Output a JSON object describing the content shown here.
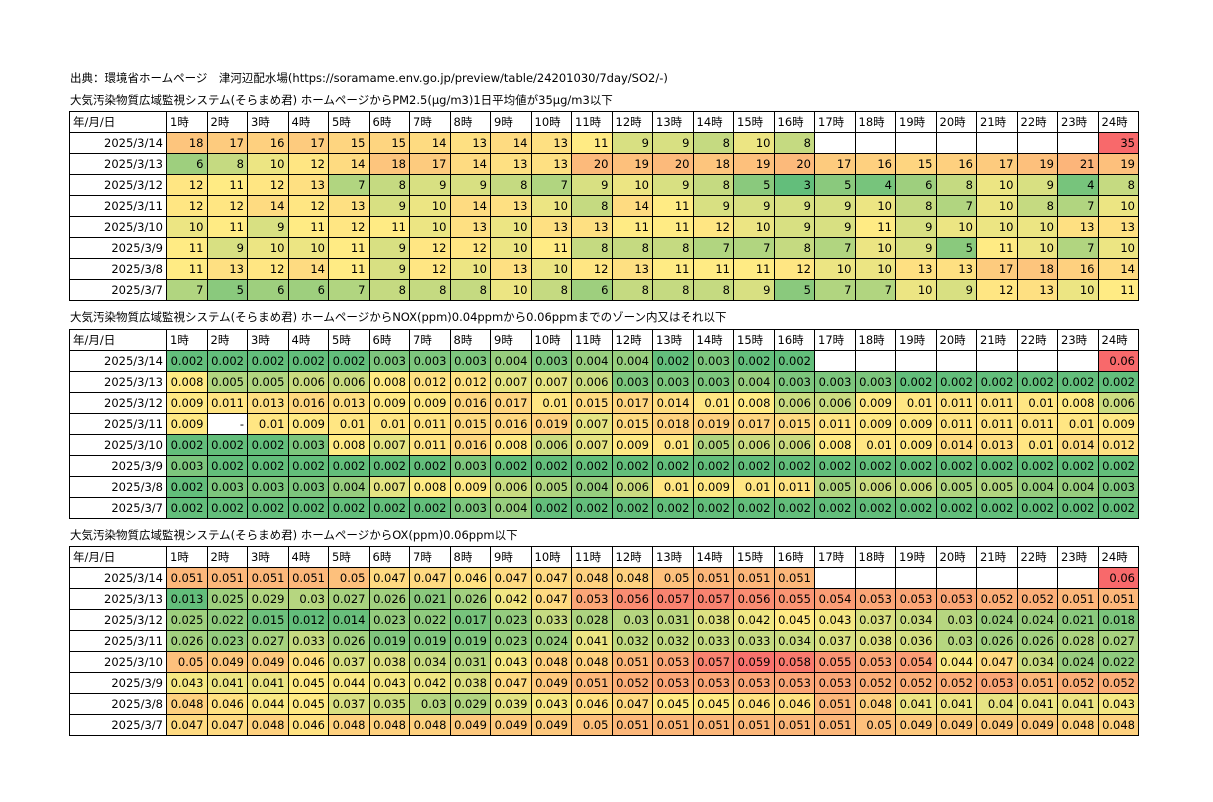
{
  "source_line": "出典：環境省ホームページ　津河辺配水場(https://soramame.env.go.jp/preview/table/24201030/7day/SO2/-)",
  "hours": [
    "1時",
    "2時",
    "3時",
    "4時",
    "5時",
    "6時",
    "7時",
    "8時",
    "9時",
    "10時",
    "11時",
    "12時",
    "13時",
    "14時",
    "15時",
    "16時",
    "17時",
    "18時",
    "19時",
    "20時",
    "21時",
    "22時",
    "23時",
    "24時"
  ],
  "colors": {
    "green": "#63be7b",
    "yellow": "#ffeb84",
    "red": "#f8696b",
    "blank": "#ffffff"
  },
  "tables": [
    {
      "title": "大気汚染物質広域監視システム(そらまめ君) ホームページからPM2.5(μg/m3)1日平均値が35μg/m3以下",
      "corner": "年/月/日",
      "scale": {
        "min": 3,
        "mid": 11,
        "max": 35
      },
      "rows": [
        {
          "date": "2025/3/14",
          "values": [
            "18",
            "17",
            "16",
            "17",
            "15",
            "15",
            "14",
            "13",
            "14",
            "13",
            "11",
            "9",
            "9",
            "8",
            "10",
            "8",
            "",
            "",
            "",
            "",
            "",
            "",
            "",
            "35"
          ]
        },
        {
          "date": "2025/3/13",
          "values": [
            "6",
            "8",
            "10",
            "12",
            "14",
            "18",
            "17",
            "14",
            "13",
            "13",
            "20",
            "19",
            "20",
            "18",
            "19",
            "20",
            "17",
            "16",
            "15",
            "16",
            "17",
            "19",
            "21",
            "19"
          ]
        },
        {
          "date": "2025/3/12",
          "values": [
            "12",
            "11",
            "12",
            "13",
            "7",
            "8",
            "9",
            "9",
            "8",
            "7",
            "9",
            "10",
            "9",
            "8",
            "5",
            "3",
            "5",
            "4",
            "6",
            "8",
            "10",
            "9",
            "4",
            "8"
          ]
        },
        {
          "date": "2025/3/11",
          "values": [
            "12",
            "12",
            "14",
            "12",
            "13",
            "9",
            "10",
            "14",
            "13",
            "10",
            "8",
            "14",
            "11",
            "9",
            "9",
            "9",
            "9",
            "10",
            "8",
            "7",
            "10",
            "8",
            "7",
            "10"
          ]
        },
        {
          "date": "2025/3/10",
          "values": [
            "10",
            "11",
            "9",
            "11",
            "12",
            "11",
            "10",
            "13",
            "10",
            "13",
            "13",
            "11",
            "11",
            "12",
            "10",
            "9",
            "9",
            "11",
            "9",
            "10",
            "10",
            "10",
            "13",
            "13"
          ]
        },
        {
          "date": "2025/3/9",
          "values": [
            "11",
            "9",
            "10",
            "10",
            "11",
            "9",
            "12",
            "12",
            "10",
            "11",
            "8",
            "8",
            "8",
            "7",
            "7",
            "8",
            "7",
            "10",
            "9",
            "5",
            "11",
            "10",
            "7",
            "10"
          ]
        },
        {
          "date": "2025/3/8",
          "values": [
            "11",
            "13",
            "12",
            "14",
            "11",
            "9",
            "12",
            "10",
            "13",
            "10",
            "12",
            "13",
            "11",
            "11",
            "11",
            "12",
            "10",
            "10",
            "13",
            "13",
            "17",
            "18",
            "16",
            "14"
          ]
        },
        {
          "date": "2025/3/7",
          "values": [
            "7",
            "5",
            "6",
            "6",
            "7",
            "8",
            "8",
            "8",
            "10",
            "8",
            "6",
            "8",
            "8",
            "8",
            "9",
            "5",
            "7",
            "7",
            "10",
            "9",
            "12",
            "13",
            "10",
            "11"
          ]
        }
      ]
    },
    {
      "title": "大気汚染物質広域監視システム(そらまめ君) ホームページからNOX(ppm)0.04ppmから0.06ppmまでのゾーン内又はそれ以下",
      "corner": "年/月/日",
      "scale": {
        "min": 0.002,
        "mid": 0.008,
        "max": 0.06
      },
      "rows": [
        {
          "date": "2025/3/14",
          "values": [
            "0.002",
            "0.002",
            "0.002",
            "0.002",
            "0.002",
            "0.003",
            "0.003",
            "0.003",
            "0.004",
            "0.003",
            "0.004",
            "0.004",
            "0.002",
            "0.003",
            "0.002",
            "0.002",
            "",
            "",
            "",
            "",
            "",
            "",
            "",
            "0.06"
          ]
        },
        {
          "date": "2025/3/13",
          "values": [
            "0.008",
            "0.005",
            "0.005",
            "0.006",
            "0.006",
            "0.008",
            "0.012",
            "0.012",
            "0.007",
            "0.007",
            "0.006",
            "0.003",
            "0.003",
            "0.003",
            "0.004",
            "0.003",
            "0.003",
            "0.003",
            "0.002",
            "0.002",
            "0.002",
            "0.002",
            "0.002",
            "0.002"
          ]
        },
        {
          "date": "2025/3/12",
          "values": [
            "0.009",
            "0.011",
            "0.013",
            "0.016",
            "0.013",
            "0.009",
            "0.009",
            "0.016",
            "0.017",
            "0.01",
            "0.015",
            "0.017",
            "0.014",
            "0.01",
            "0.008",
            "0.006",
            "0.006",
            "0.009",
            "0.01",
            "0.011",
            "0.011",
            "0.01",
            "0.008",
            "0.006"
          ]
        },
        {
          "date": "2025/3/11",
          "values": [
            "0.009",
            "-",
            "0.01",
            "0.009",
            "0.01",
            "0.01",
            "0.011",
            "0.015",
            "0.016",
            "0.019",
            "0.007",
            "0.015",
            "0.018",
            "0.019",
            "0.017",
            "0.015",
            "0.011",
            "0.009",
            "0.009",
            "0.011",
            "0.011",
            "0.011",
            "0.01",
            "0.009"
          ]
        },
        {
          "date": "2025/3/10",
          "values": [
            "0.002",
            "0.002",
            "0.002",
            "0.003",
            "0.008",
            "0.007",
            "0.011",
            "0.016",
            "0.008",
            "0.006",
            "0.007",
            "0.009",
            "0.01",
            "0.005",
            "0.006",
            "0.006",
            "0.008",
            "0.01",
            "0.009",
            "0.014",
            "0.013",
            "0.01",
            "0.014",
            "0.012"
          ]
        },
        {
          "date": "2025/3/9",
          "values": [
            "0.003",
            "0.002",
            "0.002",
            "0.002",
            "0.002",
            "0.002",
            "0.002",
            "0.003",
            "0.002",
            "0.002",
            "0.002",
            "0.002",
            "0.002",
            "0.002",
            "0.002",
            "0.002",
            "0.002",
            "0.002",
            "0.002",
            "0.002",
            "0.002",
            "0.002",
            "0.002",
            "0.002"
          ]
        },
        {
          "date": "2025/3/8",
          "values": [
            "0.002",
            "0.003",
            "0.003",
            "0.003",
            "0.004",
            "0.007",
            "0.008",
            "0.009",
            "0.006",
            "0.005",
            "0.004",
            "0.006",
            "0.01",
            "0.009",
            "0.01",
            "0.011",
            "0.005",
            "0.006",
            "0.006",
            "0.005",
            "0.005",
            "0.004",
            "0.004",
            "0.003"
          ]
        },
        {
          "date": "2025/3/7",
          "values": [
            "0.002",
            "0.002",
            "0.002",
            "0.002",
            "0.002",
            "0.002",
            "0.002",
            "0.003",
            "0.004",
            "0.002",
            "0.002",
            "0.002",
            "0.002",
            "0.002",
            "0.002",
            "0.002",
            "0.002",
            "0.002",
            "0.002",
            "0.002",
            "0.002",
            "0.002",
            "0.002",
            "0.002"
          ]
        }
      ]
    },
    {
      "title": "大気汚染物質広域監視システム(そらまめ君) ホームページからOX(ppm)0.06ppm以下",
      "corner": "年/月/日",
      "scale": {
        "min": 0.013,
        "mid": 0.045,
        "max": 0.06
      },
      "rows": [
        {
          "date": "2025/3/14",
          "values": [
            "0.051",
            "0.051",
            "0.051",
            "0.051",
            "0.05",
            "0.047",
            "0.047",
            "0.046",
            "0.047",
            "0.047",
            "0.048",
            "0.048",
            "0.05",
            "0.051",
            "0.051",
            "0.051",
            "",
            "",
            "",
            "",
            "",
            "",
            "",
            "0.06"
          ]
        },
        {
          "date": "2025/3/13",
          "values": [
            "0.013",
            "0.025",
            "0.029",
            "0.03",
            "0.027",
            "0.026",
            "0.021",
            "0.026",
            "0.042",
            "0.047",
            "0.053",
            "0.056",
            "0.057",
            "0.057",
            "0.056",
            "0.055",
            "0.054",
            "0.053",
            "0.053",
            "0.053",
            "0.052",
            "0.052",
            "0.051",
            "0.051"
          ]
        },
        {
          "date": "2025/3/12",
          "values": [
            "0.025",
            "0.022",
            "0.015",
            "0.012",
            "0.014",
            "0.023",
            "0.022",
            "0.017",
            "0.023",
            "0.033",
            "0.028",
            "0.03",
            "0.031",
            "0.038",
            "0.042",
            "0.045",
            "0.043",
            "0.037",
            "0.034",
            "0.03",
            "0.024",
            "0.024",
            "0.021",
            "0.018"
          ]
        },
        {
          "date": "2025/3/11",
          "values": [
            "0.026",
            "0.023",
            "0.027",
            "0.033",
            "0.026",
            "0.019",
            "0.019",
            "0.019",
            "0.023",
            "0.024",
            "0.041",
            "0.032",
            "0.032",
            "0.033",
            "0.033",
            "0.034",
            "0.037",
            "0.038",
            "0.036",
            "0.03",
            "0.026",
            "0.026",
            "0.028",
            "0.027"
          ]
        },
        {
          "date": "2025/3/10",
          "values": [
            "0.05",
            "0.049",
            "0.049",
            "0.046",
            "0.037",
            "0.038",
            "0.034",
            "0.031",
            "0.043",
            "0.048",
            "0.048",
            "0.051",
            "0.053",
            "0.057",
            "0.059",
            "0.058",
            "0.055",
            "0.053",
            "0.054",
            "0.044",
            "0.047",
            "0.034",
            "0.024",
            "0.022"
          ]
        },
        {
          "date": "2025/3/9",
          "values": [
            "0.043",
            "0.041",
            "0.041",
            "0.045",
            "0.044",
            "0.043",
            "0.042",
            "0.038",
            "0.047",
            "0.049",
            "0.051",
            "0.052",
            "0.053",
            "0.053",
            "0.053",
            "0.053",
            "0.053",
            "0.052",
            "0.052",
            "0.052",
            "0.053",
            "0.051",
            "0.052",
            "0.052"
          ]
        },
        {
          "date": "2025/3/8",
          "values": [
            "0.048",
            "0.046",
            "0.044",
            "0.045",
            "0.037",
            "0.035",
            "0.03",
            "0.029",
            "0.039",
            "0.043",
            "0.046",
            "0.047",
            "0.045",
            "0.045",
            "0.046",
            "0.046",
            "0.051",
            "0.048",
            "0.041",
            "0.041",
            "0.04",
            "0.041",
            "0.041",
            "0.043"
          ]
        },
        {
          "date": "2025/3/7",
          "values": [
            "0.047",
            "0.047",
            "0.048",
            "0.046",
            "0.048",
            "0.048",
            "0.048",
            "0.049",
            "0.049",
            "0.049",
            "0.05",
            "0.051",
            "0.051",
            "0.051",
            "0.051",
            "0.051",
            "0.051",
            "0.05",
            "0.049",
            "0.049",
            "0.049",
            "0.049",
            "0.048",
            "0.048"
          ]
        }
      ]
    }
  ]
}
